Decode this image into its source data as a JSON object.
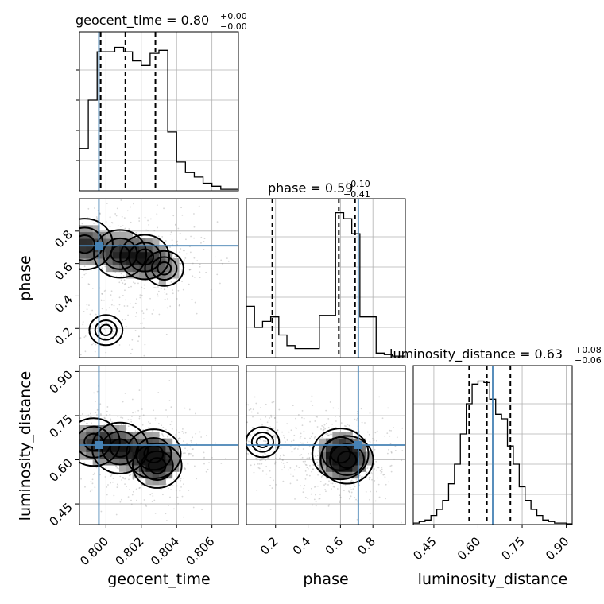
{
  "chart_data": {
    "type": "corner",
    "parameters": [
      {
        "name": "geocent_time",
        "xlabel": "geocent_time",
        "range": [
          0.7985,
          0.8075
        ],
        "ticks": [
          0.8,
          0.802,
          0.804,
          0.806
        ],
        "tick_labels": [
          "0.800",
          "0.802",
          "0.804",
          "0.806"
        ],
        "truth": 0.7996,
        "title": {
          "prefix": "geocent_time = ",
          "median": "0.80",
          "plus": "+0.00",
          "minus": "−0.00"
        },
        "quantiles": [
          0.7997,
          0.8011,
          0.8028
        ],
        "hist_edges": [
          0.7985,
          0.799,
          0.7995,
          0.8,
          0.8005,
          0.801,
          0.8015,
          0.802,
          0.8025,
          0.803,
          0.8035,
          0.804,
          0.8045,
          0.805,
          0.8055,
          0.806,
          0.8065,
          0.807,
          0.8075
        ],
        "hist_counts": [
          0.28,
          0.6,
          0.92,
          0.92,
          0.95,
          0.92,
          0.86,
          0.83,
          0.91,
          0.93,
          0.39,
          0.19,
          0.12,
          0.09,
          0.05,
          0.03,
          0.01,
          0.01
        ]
      },
      {
        "name": "phase",
        "xlabel": "phase",
        "ylabel": "phase",
        "range": [
          0.02,
          1.0
        ],
        "ticks": [
          0.2,
          0.4,
          0.6,
          0.8
        ],
        "tick_labels": [
          "0.2",
          "0.4",
          "0.6",
          "0.8"
        ],
        "truth": 0.71,
        "title": {
          "prefix": "phase = ",
          "median": "0.59",
          "plus": "+0.10",
          "minus": "−0.41"
        },
        "quantiles": [
          0.18,
          0.59,
          0.69
        ],
        "hist_edges": [
          0.02,
          0.07,
          0.12,
          0.17,
          0.22,
          0.27,
          0.32,
          0.37,
          0.42,
          0.47,
          0.52,
          0.57,
          0.62,
          0.67,
          0.72,
          0.77,
          0.82,
          0.87,
          0.92,
          0.97,
          1.0
        ],
        "hist_counts": [
          0.34,
          0.2,
          0.24,
          0.27,
          0.15,
          0.08,
          0.06,
          0.06,
          0.06,
          0.28,
          0.28,
          0.96,
          0.92,
          0.82,
          0.27,
          0.27,
          0.03,
          0.02,
          0.01,
          0.01
        ]
      },
      {
        "name": "luminosity_distance",
        "xlabel": "luminosity_distance",
        "ylabel": "luminosity_distance",
        "range": [
          0.38,
          0.92
        ],
        "ticks": [
          0.45,
          0.6,
          0.75,
          0.9
        ],
        "tick_labels": [
          "0.45",
          "0.60",
          "0.75",
          "0.90"
        ],
        "truth": 0.65,
        "title": {
          "prefix": "luminosity_distance = ",
          "median": "0.63",
          "plus": "+0.08",
          "minus": "−0.06"
        },
        "quantiles": [
          0.57,
          0.63,
          0.71
        ],
        "hist_edges": [
          0.38,
          0.4,
          0.42,
          0.44,
          0.46,
          0.48,
          0.5,
          0.52,
          0.54,
          0.56,
          0.58,
          0.6,
          0.62,
          0.64,
          0.66,
          0.68,
          0.7,
          0.72,
          0.74,
          0.76,
          0.78,
          0.8,
          0.82,
          0.84,
          0.86,
          0.88,
          0.9,
          0.92
        ],
        "hist_counts": [
          0.01,
          0.02,
          0.03,
          0.06,
          0.1,
          0.16,
          0.27,
          0.4,
          0.6,
          0.8,
          0.93,
          0.95,
          0.94,
          0.83,
          0.73,
          0.7,
          0.52,
          0.4,
          0.25,
          0.16,
          0.1,
          0.06,
          0.03,
          0.02,
          0.01,
          0.01,
          0.005
        ]
      }
    ],
    "pairs": [
      {
        "x": "geocent_time",
        "y": "phase",
        "density_modes": [
          {
            "x": 0.7988,
            "y": 0.72,
            "w": 1.0
          },
          {
            "x": 0.8008,
            "y": 0.66,
            "w": 0.9
          },
          {
            "x": 0.8022,
            "y": 0.64,
            "w": 0.8
          },
          {
            "x": 0.8033,
            "y": 0.57,
            "w": 0.5
          },
          {
            "x": 0.8,
            "y": 0.19,
            "w": 0.35
          }
        ]
      },
      {
        "x": "geocent_time",
        "y": "luminosity_distance",
        "density_modes": [
          {
            "x": 0.7993,
            "y": 0.66,
            "w": 0.9
          },
          {
            "x": 0.8008,
            "y": 0.64,
            "w": 1.0
          },
          {
            "x": 0.8027,
            "y": 0.62,
            "w": 0.95
          },
          {
            "x": 0.8029,
            "y": 0.58,
            "w": 0.8
          }
        ]
      },
      {
        "x": "phase",
        "y": "luminosity_distance",
        "density_modes": [
          {
            "x": 0.12,
            "y": 0.66,
            "w": 0.35
          },
          {
            "x": 0.6,
            "y": 0.62,
            "w": 1.0
          },
          {
            "x": 0.64,
            "y": 0.6,
            "w": 0.9
          }
        ]
      }
    ],
    "colors": {
      "truth": "#4682b4",
      "contour": "#000000",
      "grid": "#b0b0b0"
    },
    "grid": true
  }
}
